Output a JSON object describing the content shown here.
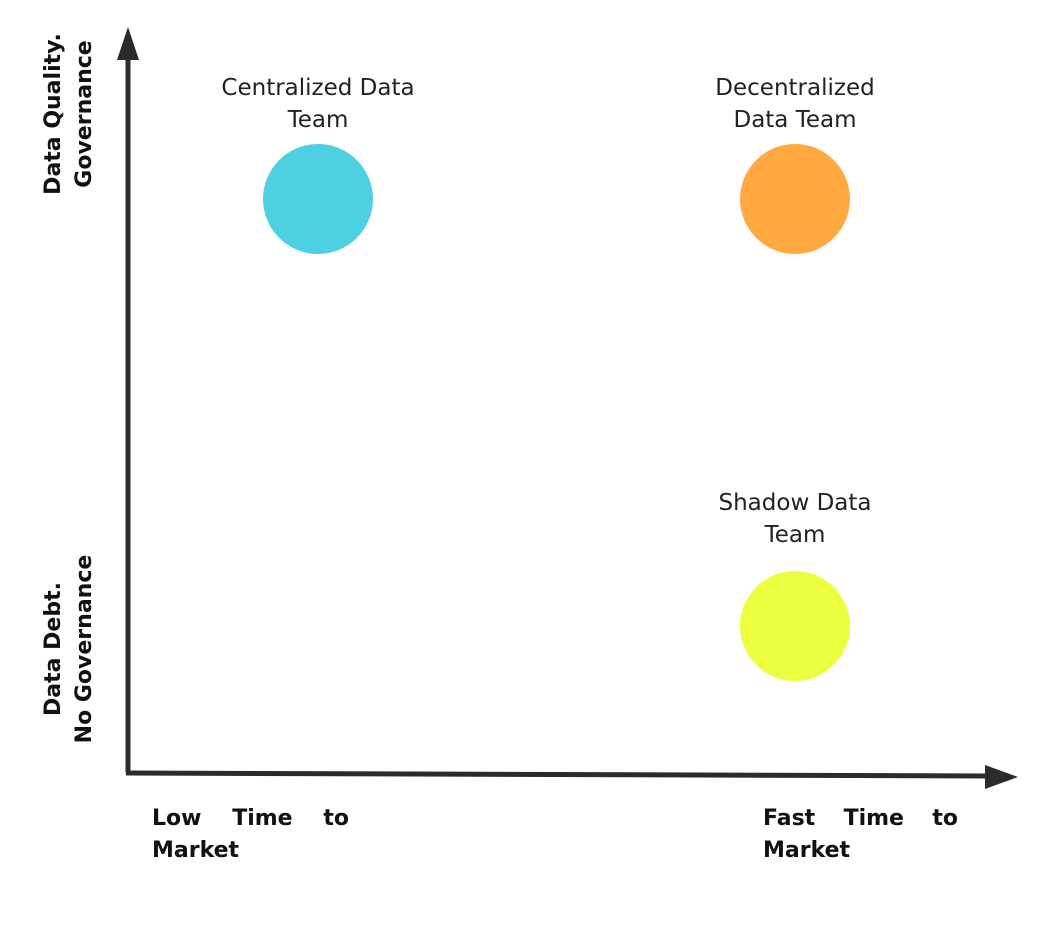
{
  "axes": {
    "y_top_label": [
      "Data Quality.",
      "Governance"
    ],
    "y_bottom_label": [
      "Data Debt.",
      "No Governance"
    ],
    "x_left_label": [
      "Low",
      "Time",
      "to",
      "Market"
    ],
    "x_right_label": [
      "Fast",
      "Time",
      "to",
      "Market"
    ]
  },
  "nodes": [
    {
      "label": "Centralized Data Team",
      "color": "#4DD0E1",
      "quadrant": "top-left"
    },
    {
      "label": "Decentralized Data Team",
      "color": "#FFA940",
      "quadrant": "top-right"
    },
    {
      "label": "Shadow Data Team",
      "color": "#EBFF40",
      "quadrant": "bottom-right"
    }
  ],
  "colors": {
    "axis": "#2B2B2B"
  }
}
